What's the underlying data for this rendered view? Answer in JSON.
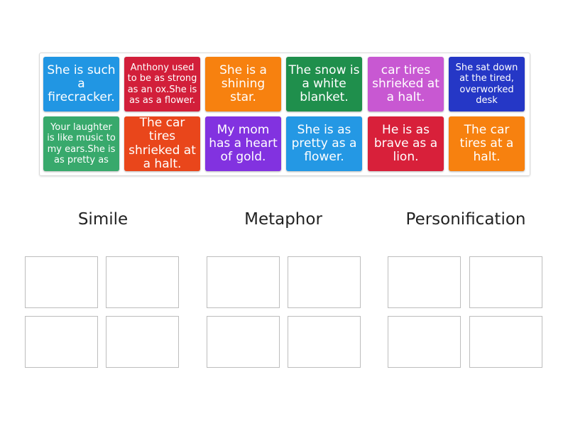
{
  "tiles": [
    {
      "text": "She is such a firecracker.",
      "color": "#2196e3"
    },
    {
      "text": "Anthony used to be as strong as an ox.She is as as a flower.",
      "color": "#d21f3a"
    },
    {
      "text": "She is a shining star.",
      "color": "#f7810f"
    },
    {
      "text": "The snow is a white blanket.",
      "color": "#1f8f4c"
    },
    {
      "text": "car tires shrieked at a halt.",
      "color": "#c858d2"
    },
    {
      "text": "She sat down at the tired, overworked desk",
      "color": "#2537c6"
    },
    {
      "text": "Your laughter is like music to my ears.She is as pretty as",
      "color": "#38a96c"
    },
    {
      "text": "The car tires shrieked at a halt.",
      "color": "#e9461b"
    },
    {
      "text": "My mom has a heart of gold.",
      "color": "#8232e0"
    },
    {
      "text": "She is as pretty as a flower.",
      "color": "#2498e4"
    },
    {
      "text": "He is as brave as a lion.",
      "color": "#d8203a"
    },
    {
      "text": "The car tires at a halt.",
      "color": "#f7810f"
    }
  ],
  "groups": [
    {
      "title": "Simile"
    },
    {
      "title": "Metaphor"
    },
    {
      "title": "Personification"
    }
  ]
}
